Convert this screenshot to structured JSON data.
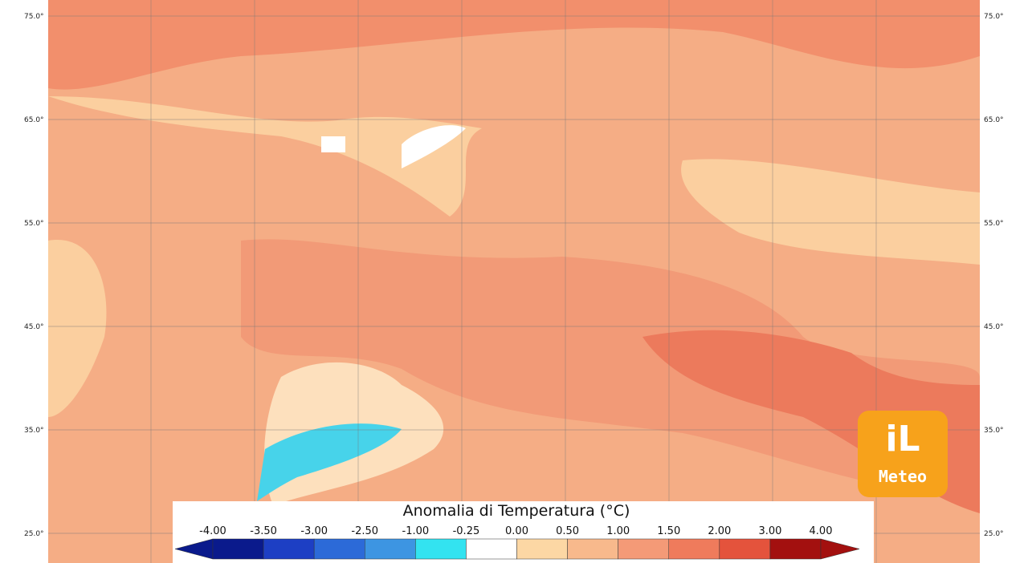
{
  "map": {
    "latitude_labels": [
      "75.0°",
      "65.0°",
      "55.0°",
      "45.0°",
      "35.0°",
      "25.0°"
    ],
    "legend": {
      "title": "Anomalia di Temperatura (°C)",
      "ticks": [
        "-4.00",
        "-3.50",
        "-3.00",
        "-2.50",
        "-1.00",
        "-0.25",
        "0.00",
        "0.50",
        "1.00",
        "1.50",
        "2.00",
        "3.00",
        "4.00"
      ],
      "colors": [
        "#0a1a8c",
        "#0a1a8c",
        "#1d3fc4",
        "#2c6ad8",
        "#3d95e2",
        "#33e3f0",
        "#ffffff",
        "#fcd7a4",
        "#f8b98c",
        "#f49a77",
        "#ef7b5c",
        "#e4533c",
        "#a3100f",
        "#a3100f"
      ]
    },
    "logo": {
      "mark": "iL",
      "name": "Meteo"
    }
  }
}
